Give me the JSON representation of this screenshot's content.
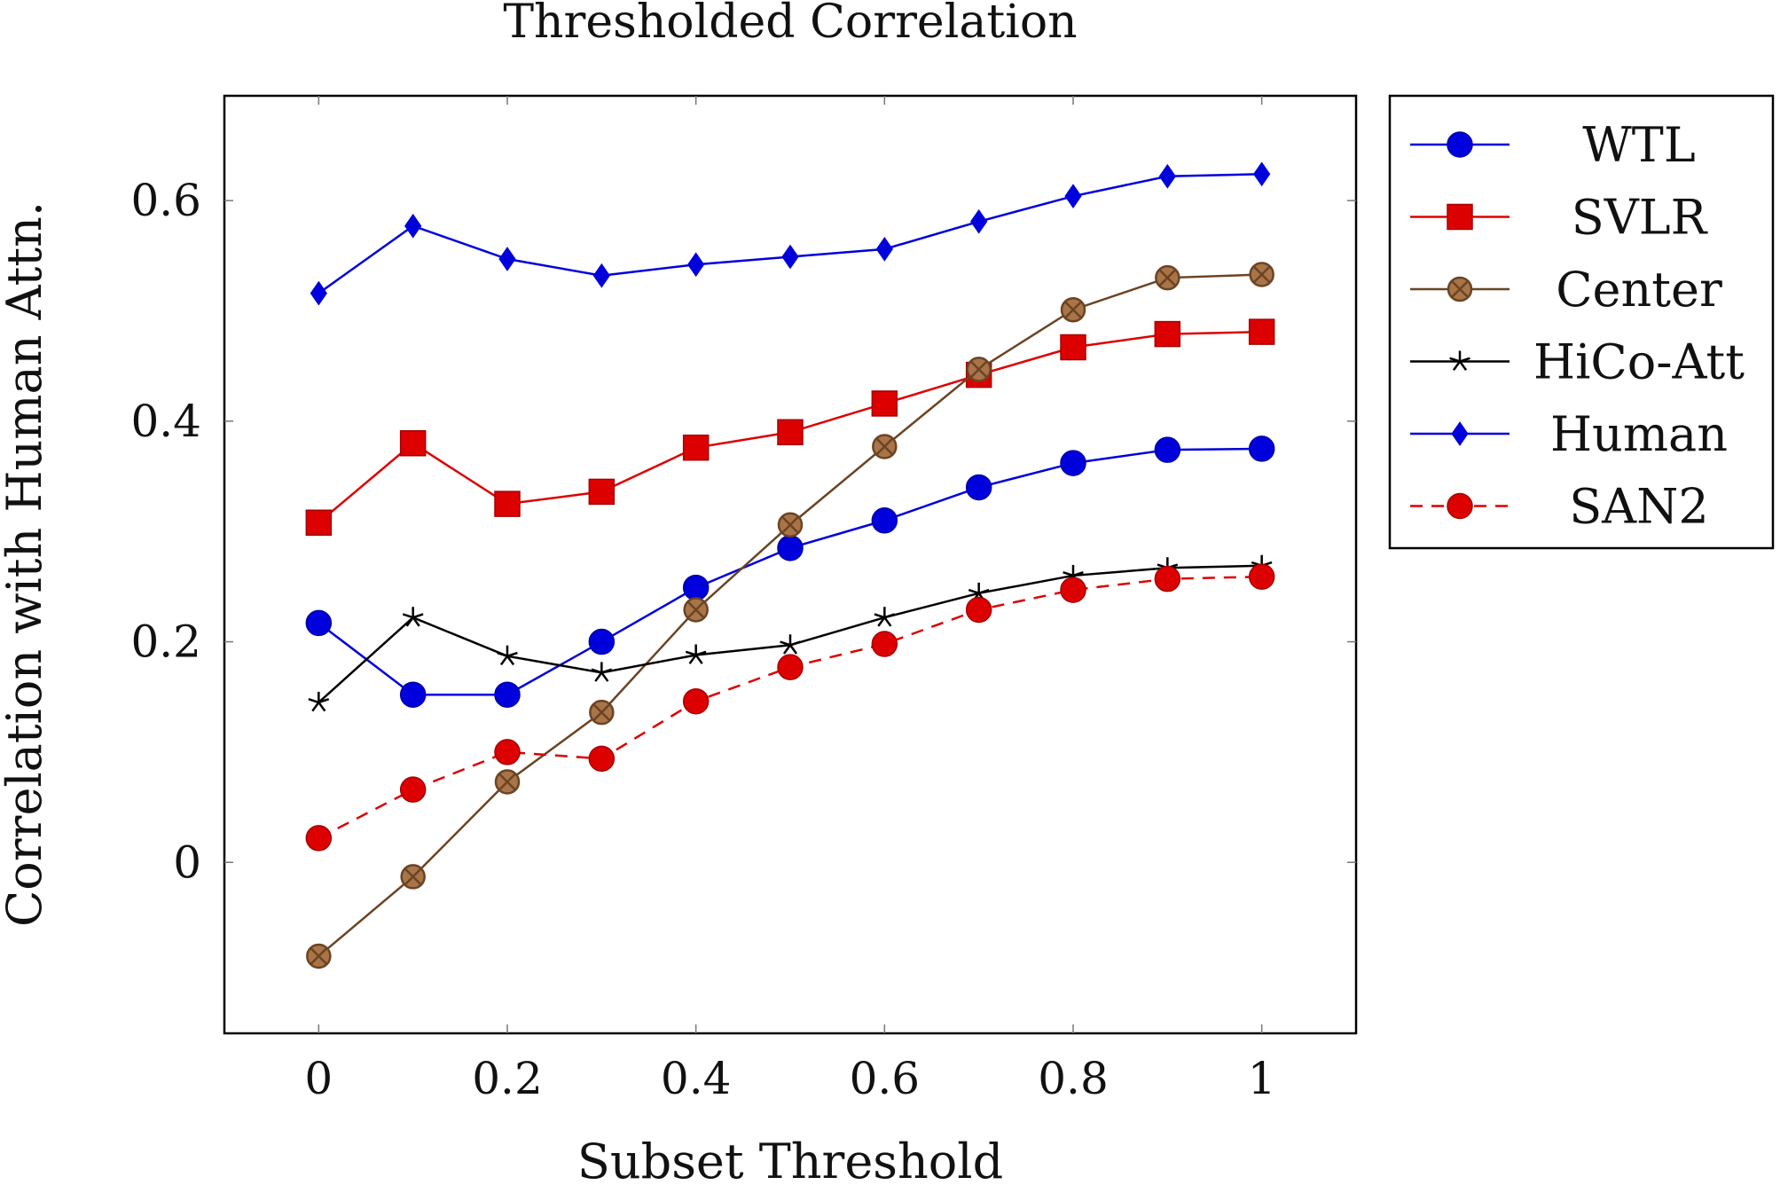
{
  "chart_data": {
    "type": "line",
    "title": "Thresholded Correlation",
    "xlabel": "Subset Threshold",
    "ylabel": "Correlation with Human Attn.",
    "xlim": [
      -0.1,
      1.1
    ],
    "ylim": [
      -0.155,
      0.695
    ],
    "xticks": [
      0,
      0.2,
      0.4,
      0.6,
      0.8,
      1
    ],
    "xtick_labels": [
      "0",
      "0.2",
      "0.4",
      "0.6",
      "0.8",
      "1"
    ],
    "yticks": [
      0,
      0.2,
      0.4,
      0.6
    ],
    "ytick_labels": [
      "0",
      "0.2",
      "0.4",
      "0.6"
    ],
    "grid": false,
    "legend_position": "outside-right-top",
    "x": [
      0,
      0.1,
      0.2,
      0.3,
      0.4,
      0.5,
      0.6,
      0.7,
      0.8,
      0.9,
      1.0
    ],
    "series": [
      {
        "name": "WTL",
        "color": "#0000dd",
        "marker": "circle",
        "dash": "solid",
        "values": [
          0.217,
          0.152,
          0.152,
          0.2,
          0.249,
          0.285,
          0.31,
          0.34,
          0.362,
          0.374,
          0.375
        ]
      },
      {
        "name": "SVLR",
        "color": "#dd0000",
        "marker": "square",
        "dash": "solid",
        "values": [
          0.308,
          0.38,
          0.325,
          0.336,
          0.376,
          0.39,
          0.416,
          0.442,
          0.467,
          0.479,
          0.481
        ]
      },
      {
        "name": "Center",
        "color": "#6b4423",
        "marker": "circle-x",
        "dash": "solid",
        "values": [
          -0.085,
          -0.013,
          0.073,
          0.136,
          0.229,
          0.306,
          0.377,
          0.447,
          0.501,
          0.53,
          0.533
        ]
      },
      {
        "name": "HiCo-Att",
        "color": "#000000",
        "marker": "star",
        "dash": "solid",
        "values": [
          0.145,
          0.222,
          0.187,
          0.172,
          0.188,
          0.197,
          0.222,
          0.244,
          0.26,
          0.267,
          0.269
        ]
      },
      {
        "name": "Human",
        "color": "#0000dd",
        "marker": "diamond",
        "dash": "solid",
        "values": [
          0.516,
          0.577,
          0.547,
          0.532,
          0.542,
          0.549,
          0.556,
          0.581,
          0.604,
          0.622,
          0.624
        ]
      },
      {
        "name": "SAN2",
        "color": "#dd0000",
        "marker": "circle",
        "dash": "dashed",
        "values": [
          0.022,
          0.066,
          0.1,
          0.094,
          0.146,
          0.177,
          0.198,
          0.229,
          0.247,
          0.257,
          0.259
        ]
      }
    ]
  }
}
